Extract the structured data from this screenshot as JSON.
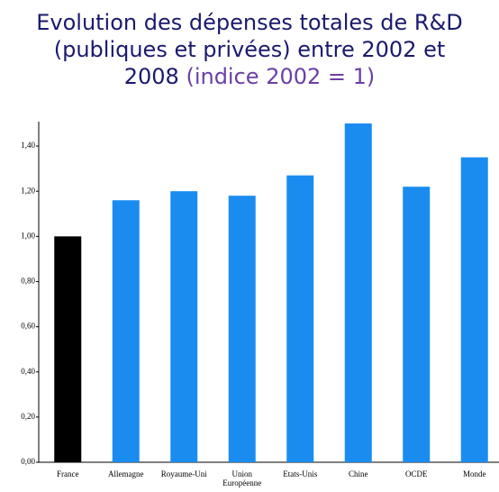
{
  "chart_data": {
    "type": "bar",
    "title": "Evolution des dépenses totales de R&D (publiques et privées) entre 2002 et 2008",
    "subtitle": "(indice 2002 = 1)",
    "categories": [
      "France",
      "Allemagne",
      "Royaume-Uni",
      "Union Européenne",
      "Etats-Unis",
      "Chine",
      "OCDE",
      "Monde"
    ],
    "values": [
      1.0,
      1.16,
      1.2,
      1.18,
      1.27,
      1.5,
      1.22,
      1.35
    ],
    "colors": [
      "#000000",
      "#1a8cf0",
      "#1a8cf0",
      "#1a8cf0",
      "#1a8cf0",
      "#1a8cf0",
      "#1a8cf0",
      "#1a8cf0"
    ],
    "ylim": [
      0,
      1.5
    ],
    "yticks": [
      {
        "value": 0,
        "label": "0,00"
      },
      {
        "value": 0.2,
        "label": "0,20"
      },
      {
        "value": 0.4,
        "label": "0,40"
      },
      {
        "value": 0.6,
        "label": "0,60"
      },
      {
        "value": 0.8,
        "label": "0,80"
      },
      {
        "value": 1.0,
        "label": "1,00"
      },
      {
        "value": 1.2,
        "label": "1,20"
      },
      {
        "value": 1.4,
        "label": "1,40"
      }
    ]
  }
}
